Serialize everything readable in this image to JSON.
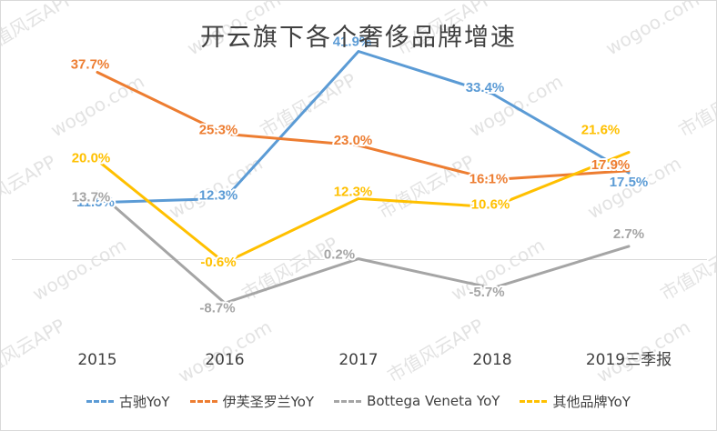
{
  "chart_data": {
    "type": "line",
    "title": "开云旗下各个奢侈品牌增速",
    "categories": [
      "2015",
      "2016",
      "2017",
      "2018",
      "2019三季报"
    ],
    "ylim": [
      -15,
      50
    ],
    "grid": false,
    "legend_position": "bottom",
    "series": [
      {
        "name": "古驰YoY",
        "color": "#5b9bd5",
        "values": [
          11.5,
          12.3,
          41.9,
          33.4,
          17.5
        ],
        "labels": [
          "11.5%",
          "12.3%",
          "41.9%",
          "33.4%",
          "17.5%"
        ]
      },
      {
        "name": "伊芙圣罗兰YoY",
        "color": "#ed7d31",
        "values": [
          37.7,
          25.3,
          23.0,
          16.1,
          17.9
        ],
        "labels": [
          "37.7%",
          "25.3%",
          "23.0%",
          "16.1%",
          "17.9%"
        ]
      },
      {
        "name": "Bottega Veneta YoY",
        "color": "#a5a5a5",
        "values": [
          13.7,
          -8.7,
          0.2,
          -5.7,
          2.7
        ],
        "labels": [
          "13.7%",
          "-8.7%",
          "0.2%",
          "-5.7%",
          "2.7%"
        ]
      },
      {
        "name": "其他品牌YoY",
        "color": "#ffc000",
        "values": [
          20.0,
          -0.6,
          12.3,
          10.6,
          21.6
        ],
        "labels": [
          "20.0%",
          "-0.6%",
          "12.3%",
          "10.6%",
          "21.6%"
        ]
      }
    ]
  },
  "watermark": {
    "text_app": "市值风云APP",
    "text_site": "wogoo.com"
  }
}
